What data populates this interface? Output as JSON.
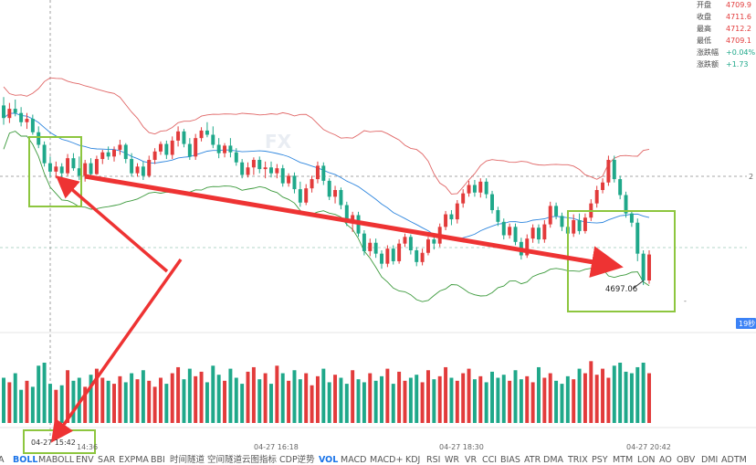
{
  "colors": {
    "up": "#e23b3b",
    "down": "#1fa88a",
    "arrow": "#ee3333",
    "box": "#8dc63f",
    "boll_upper": "#e06666",
    "boll_mid": "#2e86de",
    "boll_lower": "#3c9a3c"
  },
  "stats": [
    {
      "label": "开盘",
      "value": "4709.9",
      "color": "#e23b3b"
    },
    {
      "label": "收盘",
      "value": "4711.6",
      "color": "#e23b3b"
    },
    {
      "label": "最高",
      "value": "4712.2",
      "color": "#e23b3b"
    },
    {
      "label": "最低",
      "value": "4709.1",
      "color": "#e23b3b"
    },
    {
      "label": "涨跌幅",
      "value": "+0.04%",
      "color": "#1fa88a"
    },
    {
      "label": "涨跌额",
      "value": "+1.73",
      "color": "#1fa88a"
    }
  ],
  "time_labels": [
    "04-27 14:36",
    "04-27 16:18",
    "04-27 18:30",
    "04-27 20:42"
  ],
  "cursor_time": "04-27 15:42",
  "low_label": "4697.06",
  "countdown": "19秒",
  "right_edge": "2",
  "indicator_tabs": [
    "A",
    "BOLL",
    "MABOLL",
    "ENV",
    "SAR",
    "EXPMA",
    "BBI",
    "时间隧道",
    "空间隧道",
    "云图指标",
    "CDP逆势",
    "VOL",
    "MACD",
    "MACD+",
    "KDJ",
    "RSI",
    "WR",
    "VR",
    "CCI",
    "BIAS",
    "ATR",
    "DMA",
    "TRIX",
    "PSY",
    "MTM",
    "LON",
    "AO",
    "OBV",
    "DMI",
    "ADTM"
  ],
  "active_tabs": [
    "BOLL",
    "VOL"
  ],
  "chart_data": {
    "type": "candlestick",
    "title": "",
    "x_labels": [
      "04-27 14:36",
      "04-27 16:18",
      "04-27 18:30",
      "04-27 20:42"
    ],
    "price_min": 4694,
    "price_max": 4730,
    "candles_ohlc": [
      [
        4718.5,
        4719.5,
        4716.2,
        4717.0
      ],
      [
        4717.0,
        4718.8,
        4716.4,
        4718.1
      ],
      [
        4718.1,
        4719.2,
        4717.2,
        4717.6
      ],
      [
        4717.6,
        4718.3,
        4716.0,
        4716.5
      ],
      [
        4716.5,
        4717.6,
        4715.7,
        4716.9
      ],
      [
        4716.9,
        4717.4,
        4715.0,
        4715.3
      ],
      [
        4715.3,
        4716.0,
        4713.4,
        4713.8
      ],
      [
        4713.8,
        4714.2,
        4711.2,
        4711.6
      ],
      [
        4711.6,
        4712.4,
        4710.0,
        4710.6
      ],
      [
        4710.6,
        4711.8,
        4709.8,
        4711.2
      ],
      [
        4711.2,
        4711.6,
        4709.8,
        4710.4
      ],
      [
        4710.4,
        4712.7,
        4710.1,
        4712.2
      ],
      [
        4712.2,
        4712.8,
        4710.7,
        4711.0
      ],
      [
        4711.0,
        4712.4,
        4709.6,
        4710.1
      ],
      [
        4710.1,
        4712.0,
        4709.4,
        4711.6
      ],
      [
        4711.6,
        4712.2,
        4709.9,
        4710.3
      ],
      [
        4710.3,
        4712.5,
        4710.2,
        4712.1
      ],
      [
        4712.1,
        4713.2,
        4711.5,
        4712.9
      ],
      [
        4712.9,
        4713.6,
        4712.0,
        4712.4
      ],
      [
        4712.4,
        4713.6,
        4711.8,
        4713.2
      ],
      [
        4713.2,
        4714.4,
        4712.6,
        4713.8
      ],
      [
        4713.8,
        4714.0,
        4711.6,
        4712.1
      ],
      [
        4712.1,
        4712.8,
        4710.0,
        4710.4
      ],
      [
        4710.4,
        4711.6,
        4710.0,
        4711.2
      ],
      [
        4711.2,
        4711.8,
        4709.6,
        4710.1
      ],
      [
        4710.1,
        4712.5,
        4709.9,
        4712.0
      ],
      [
        4712.0,
        4713.4,
        4711.5,
        4713.0
      ],
      [
        4713.0,
        4714.2,
        4712.6,
        4713.9
      ],
      [
        4713.9,
        4714.3,
        4712.1,
        4712.6
      ],
      [
        4712.6,
        4714.8,
        4712.1,
        4714.3
      ],
      [
        4714.3,
        4716.0,
        4713.6,
        4715.4
      ],
      [
        4715.4,
        4715.7,
        4713.5,
        4713.9
      ],
      [
        4713.9,
        4714.6,
        4712.0,
        4712.4
      ],
      [
        4712.4,
        4715.1,
        4712.0,
        4714.6
      ],
      [
        4714.6,
        4715.9,
        4714.2,
        4715.5
      ],
      [
        4715.5,
        4716.5,
        4714.7,
        4715.0
      ],
      [
        4715.0,
        4716.0,
        4713.4,
        4713.8
      ],
      [
        4713.8,
        4714.6,
        4712.2,
        4712.8
      ],
      [
        4712.8,
        4714.0,
        4712.3,
        4713.7
      ],
      [
        4713.7,
        4714.6,
        4712.3,
        4712.9
      ],
      [
        4712.9,
        4713.4,
        4711.3,
        4711.7
      ],
      [
        4711.7,
        4712.1,
        4709.8,
        4710.2
      ],
      [
        4710.2,
        4711.7,
        4709.9,
        4711.1
      ],
      [
        4711.1,
        4712.3,
        4710.2,
        4712.0
      ],
      [
        4712.0,
        4712.4,
        4710.4,
        4710.9
      ],
      [
        4710.9,
        4711.8,
        4709.8,
        4711.1
      ],
      [
        4711.1,
        4711.8,
        4709.9,
        4710.4
      ],
      [
        4710.4,
        4711.5,
        4709.8,
        4711.0
      ],
      [
        4711.0,
        4711.4,
        4708.8,
        4709.2
      ],
      [
        4709.2,
        4710.4,
        4708.8,
        4710.1
      ],
      [
        4710.1,
        4710.5,
        4708.0,
        4708.5
      ],
      [
        4708.5,
        4709.4,
        4706.4,
        4706.9
      ],
      [
        4706.9,
        4709.1,
        4706.6,
        4708.6
      ],
      [
        4708.6,
        4710.1,
        4708.1,
        4709.7
      ],
      [
        4709.7,
        4711.8,
        4709.2,
        4711.3
      ],
      [
        4711.3,
        4711.7,
        4709.0,
        4709.5
      ],
      [
        4709.5,
        4709.8,
        4707.2,
        4707.6
      ],
      [
        4707.6,
        4708.9,
        4706.8,
        4708.4
      ],
      [
        4708.4,
        4708.7,
        4706.1,
        4706.6
      ],
      [
        4706.6,
        4707.0,
        4704.1,
        4704.5
      ],
      [
        4704.5,
        4705.8,
        4703.4,
        4705.4
      ],
      [
        4705.4,
        4705.8,
        4702.8,
        4703.2
      ],
      [
        4703.2,
        4703.6,
        4700.6,
        4701.1
      ],
      [
        4701.1,
        4702.6,
        4700.5,
        4702.1
      ],
      [
        4702.1,
        4702.6,
        4700.3,
        4700.8
      ],
      [
        4700.8,
        4701.2,
        4699.0,
        4699.6
      ],
      [
        4699.6,
        4701.8,
        4699.2,
        4701.4
      ],
      [
        4701.4,
        4701.8,
        4699.5,
        4699.9
      ],
      [
        4699.9,
        4702.5,
        4699.6,
        4702.0
      ],
      [
        4702.0,
        4703.2,
        4701.6,
        4702.8
      ],
      [
        4702.8,
        4703.1,
        4700.7,
        4701.2
      ],
      [
        4701.2,
        4701.6,
        4699.3,
        4699.8
      ],
      [
        4699.8,
        4701.4,
        4699.4,
        4700.9
      ],
      [
        4700.9,
        4702.8,
        4700.6,
        4702.5
      ],
      [
        4702.5,
        4703.0,
        4701.3,
        4702.0
      ],
      [
        4702.0,
        4704.4,
        4701.6,
        4704.0
      ],
      [
        4704.0,
        4705.9,
        4703.6,
        4705.5
      ],
      [
        4705.5,
        4706.0,
        4704.2,
        4704.9
      ],
      [
        4704.9,
        4707.2,
        4704.4,
        4706.8
      ],
      [
        4706.8,
        4708.5,
        4706.3,
        4708.0
      ],
      [
        4708.0,
        4709.5,
        4707.6,
        4709.0
      ],
      [
        4709.0,
        4709.6,
        4707.6,
        4708.1
      ],
      [
        4708.1,
        4709.8,
        4707.5,
        4709.4
      ],
      [
        4709.4,
        4709.8,
        4707.4,
        4707.9
      ],
      [
        4707.9,
        4708.3,
        4705.6,
        4706.0
      ],
      [
        4706.0,
        4706.4,
        4704.1,
        4704.6
      ],
      [
        4704.6,
        4705.0,
        4702.5,
        4703.0
      ],
      [
        4703.0,
        4704.4,
        4702.6,
        4704.0
      ],
      [
        4704.0,
        4704.4,
        4701.8,
        4702.2
      ],
      [
        4702.2,
        4702.7,
        4700.1,
        4700.6
      ],
      [
        4700.6,
        4703.1,
        4700.3,
        4702.6
      ],
      [
        4702.6,
        4704.3,
        4702.1,
        4703.9
      ],
      [
        4703.9,
        4704.3,
        4702.0,
        4702.5
      ],
      [
        4702.5,
        4704.8,
        4702.1,
        4704.3
      ],
      [
        4704.3,
        4707.0,
        4703.9,
        4706.5
      ],
      [
        4706.5,
        4706.9,
        4704.9,
        4705.3
      ],
      [
        4705.3,
        4705.7,
        4703.5,
        4704.0
      ],
      [
        4704.0,
        4704.4,
        4702.7,
        4703.2
      ],
      [
        4703.2,
        4705.5,
        4702.8,
        4704.8
      ],
      [
        4704.8,
        4705.6,
        4703.1,
        4703.5
      ],
      [
        4703.5,
        4705.6,
        4703.2,
        4705.1
      ],
      [
        4705.1,
        4707.3,
        4704.7,
        4706.8
      ],
      [
        4706.8,
        4708.9,
        4706.3,
        4708.4
      ],
      [
        4708.4,
        4709.8,
        4708.0,
        4709.3
      ],
      [
        4709.3,
        4712.5,
        4708.9,
        4712.0
      ],
      [
        4712.0,
        4712.5,
        4709.3,
        4709.7
      ],
      [
        4709.7,
        4710.1,
        4707.3,
        4707.8
      ],
      [
        4707.8,
        4708.2,
        4705.1,
        4705.6
      ],
      [
        4705.6,
        4706.0,
        4704.0,
        4704.5
      ],
      [
        4704.5,
        4705.0,
        4699.9,
        4700.8
      ],
      [
        4700.8,
        4701.2,
        4697.06,
        4697.6
      ],
      [
        4697.6,
        4701.2,
        4697.2,
        4700.7
      ]
    ],
    "volumes": [
      30,
      27,
      33,
      22,
      28,
      24,
      38,
      40,
      26,
      22,
      25,
      35,
      28,
      30,
      24,
      32,
      36,
      30,
      28,
      26,
      31,
      27,
      33,
      29,
      35,
      28,
      24,
      30,
      26,
      33,
      37,
      29,
      36,
      31,
      34,
      27,
      38,
      32,
      28,
      36,
      30,
      26,
      34,
      37,
      29,
      33,
      26,
      38,
      33,
      28,
      35,
      29,
      33,
      25,
      31,
      36,
      27,
      32,
      30,
      26,
      35,
      29,
      27,
      33,
      28,
      31,
      36,
      26,
      34,
      28,
      30,
      32,
      27,
      35,
      29,
      31,
      37,
      30,
      28,
      33,
      36,
      29,
      31,
      27,
      34,
      30,
      32,
      28,
      35,
      29,
      31,
      27,
      37,
      30,
      33,
      28,
      26,
      31,
      29,
      36,
      33,
      41,
      32,
      36,
      30,
      38,
      40,
      34,
      33,
      37,
      40,
      33
    ],
    "boll_upper": [
      4732.5,
      4731.8,
      4730.6,
      4729.3,
      4727.7,
      4726.4,
      4724.9,
      4723.3,
      4721.8,
      4720.9,
      4720.1,
      4719.5,
      4719.4,
      4719.2,
      4719.0,
      4718.4,
      4718.2,
      4717.7,
      4716.9,
      4717.0,
      4717.6,
      4718.0,
      4718.5,
      4719.0,
      4718.8,
      4718.6,
      4718.4,
      4717.6,
      4716.6,
      4716.0,
      4715.8,
      4714.8,
      4713.4,
      4712.0,
      4711.0,
      4710.4,
      4709.7,
      4709.1,
      4708.8,
      4708.9,
      4709.5,
      4710.2,
      4711.1,
      4711.0,
      4710.6,
      4710.4,
      4710.0,
      4709.8,
      4709.9,
      4710.2,
      4710.7
    ],
    "boll_mid_y": [],
    "ylabel": "",
    "xlabel": ""
  }
}
